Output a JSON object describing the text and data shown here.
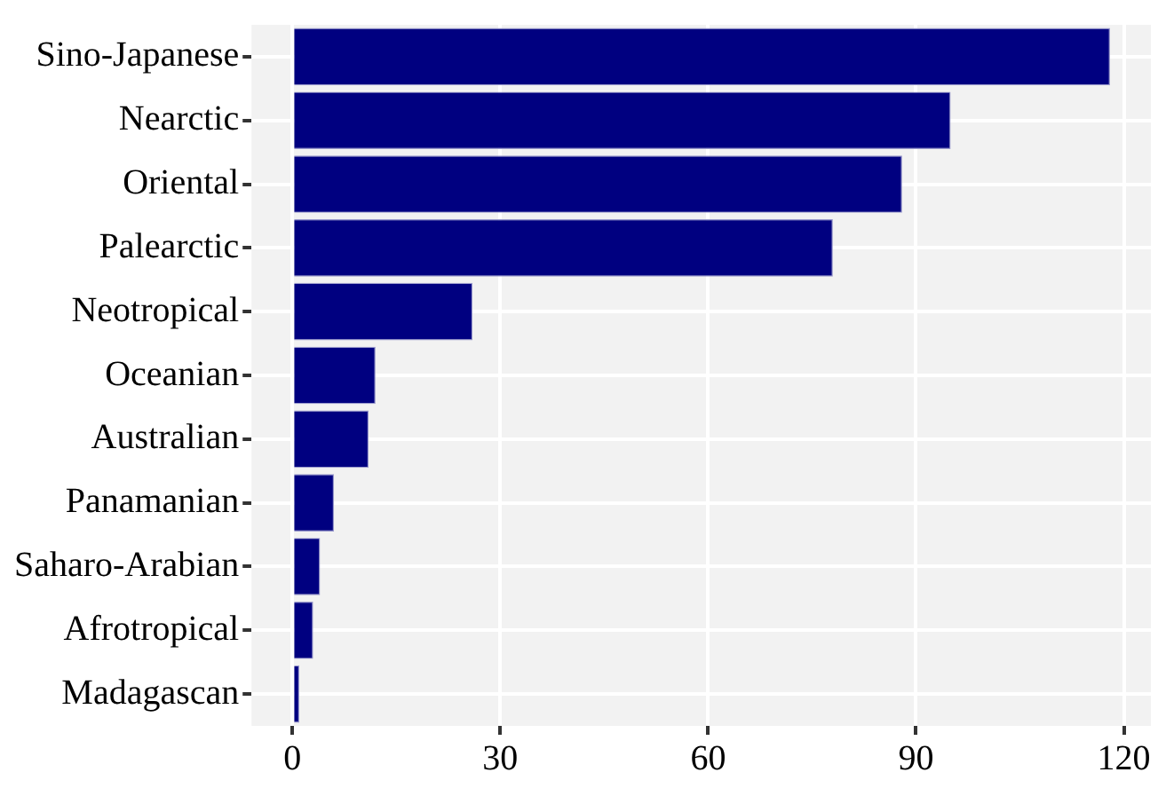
{
  "chart_data": {
    "type": "bar",
    "orientation": "horizontal",
    "categories": [
      "Sino-Japanese",
      "Nearctic",
      "Oriental",
      "Palearctic",
      "Neotropical",
      "Oceanian",
      "Australian",
      "Panamanian",
      "Saharo-Arabian",
      "Afrotropical",
      "Madagascan"
    ],
    "values": [
      118,
      95,
      88,
      78,
      26,
      12,
      11,
      6,
      4,
      3,
      1
    ],
    "color": "#000080",
    "xlim": [
      -5.9,
      123.9
    ],
    "xticks": [
      0,
      30,
      60,
      90,
      120
    ],
    "grid": true
  }
}
